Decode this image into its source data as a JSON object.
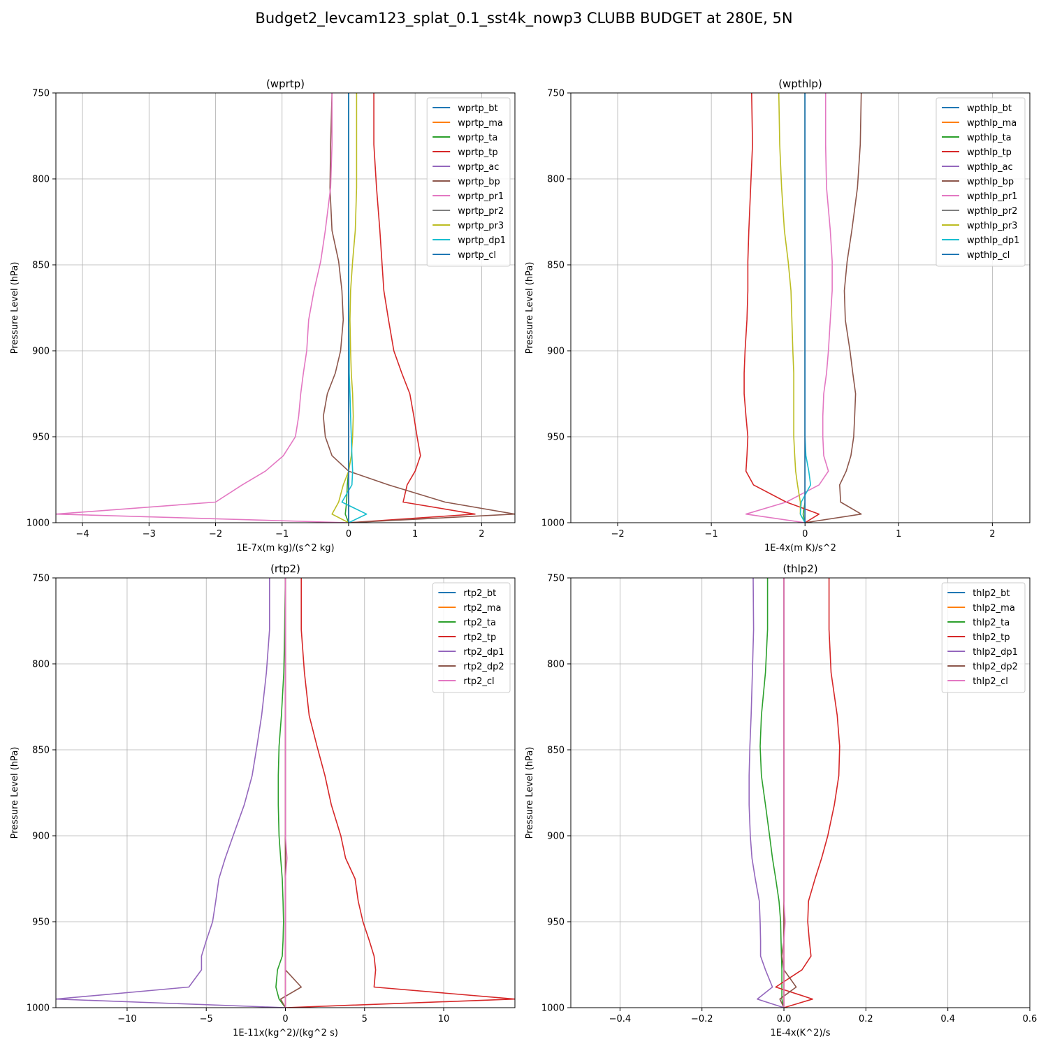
{
  "figure": {
    "title": "Budget2_levcam123_splat_0.1_sst4k_nowp3 CLUBB BUDGET at 280E, 5N"
  },
  "chart_data": [
    {
      "type": "line",
      "title": "(wprtp)",
      "xlabel": "1E-7x(m kg)/(s^2 kg)",
      "ylabel": "Pressure Level (hPa)",
      "xlim": [
        -4.4,
        2.5
      ],
      "ylim": [
        1000,
        750
      ],
      "y_inverted": true,
      "xticks": [
        -4,
        -3,
        -2,
        -1,
        0,
        1,
        2
      ],
      "xtick_labels": [
        "−4",
        "−3",
        "−2",
        "−1",
        "0",
        "1",
        "2"
      ],
      "yticks": [
        750,
        800,
        850,
        900,
        950,
        1000
      ],
      "grid": true,
      "legend_position": "top-right",
      "levels": [
        750,
        780,
        805,
        830,
        848,
        865,
        882,
        900,
        913,
        925,
        938,
        950,
        961,
        970,
        978,
        988,
        995,
        1000
      ],
      "series": [
        {
          "name": "wprtp_bt",
          "color": "#1f77b4",
          "values": [
            0,
            0,
            0,
            0,
            0,
            0,
            0,
            0,
            0,
            0,
            0,
            0,
            0,
            0,
            0,
            0,
            0,
            0
          ]
        },
        {
          "name": "wprtp_ma",
          "color": "#ff7f0e",
          "values": [
            0,
            0,
            0,
            0,
            0,
            0,
            0,
            0,
            0,
            0,
            0,
            0,
            0,
            0,
            0,
            0,
            0,
            0
          ]
        },
        {
          "name": "wprtp_ta",
          "color": "#2ca02c",
          "values": [
            0,
            0,
            0,
            0,
            0,
            0,
            0,
            0,
            0,
            0,
            0,
            0,
            0,
            0.0,
            -0.02,
            -0.03,
            -0.05,
            0
          ]
        },
        {
          "name": "wprtp_tp",
          "color": "#d62728",
          "values": [
            0.38,
            0.38,
            0.42,
            0.47,
            0.5,
            0.53,
            0.6,
            0.68,
            0.8,
            0.92,
            0.98,
            1.03,
            1.08,
            1.0,
            0.88,
            0.82,
            1.9,
            0
          ]
        },
        {
          "name": "wprtp_ac",
          "color": "#9467bd",
          "values": [
            0,
            0,
            0,
            0,
            0,
            0,
            0,
            0,
            0,
            0,
            0,
            0,
            0,
            0,
            0,
            0,
            0,
            0
          ]
        },
        {
          "name": "wprtp_bp",
          "color": "#8c564b",
          "values": [
            -0.25,
            -0.27,
            -0.28,
            -0.25,
            -0.15,
            -0.1,
            -0.08,
            -0.12,
            -0.2,
            -0.32,
            -0.38,
            -0.35,
            -0.25,
            0.0,
            0.6,
            1.45,
            2.5,
            0
          ]
        },
        {
          "name": "wprtp_pr1",
          "color": "#e377c2",
          "values": [
            -0.25,
            -0.25,
            -0.27,
            -0.35,
            -0.42,
            -0.52,
            -0.6,
            -0.63,
            -0.68,
            -0.72,
            -0.75,
            -0.8,
            -0.98,
            -1.25,
            -1.6,
            -2.0,
            -4.4,
            0
          ]
        },
        {
          "name": "wprtp_pr2",
          "color": "#7f7f7f",
          "values": [
            0,
            0,
            0,
            0,
            0,
            0,
            0,
            0,
            0,
            0,
            0,
            0,
            0,
            0,
            0,
            0,
            0,
            0
          ]
        },
        {
          "name": "wprtp_pr3",
          "color": "#bcbd22",
          "values": [
            0.12,
            0.12,
            0.12,
            0.1,
            0.06,
            0.03,
            0.02,
            0.03,
            0.04,
            0.06,
            0.07,
            0.06,
            0.04,
            0.0,
            -0.08,
            -0.15,
            -0.25,
            0
          ]
        },
        {
          "name": "wprtp_dp1",
          "color": "#17becf",
          "values": [
            0,
            0,
            0,
            0,
            0,
            0,
            0,
            0.01,
            0.01,
            0.02,
            0.03,
            0.04,
            0.05,
            0.06,
            0.05,
            -0.1,
            0.27,
            0
          ]
        },
        {
          "name": "wprtp_cl",
          "color": "#1f77b4",
          "values": [
            0,
            0,
            0,
            0,
            0,
            0,
            0,
            0,
            0,
            0,
            0,
            0,
            0,
            0,
            0,
            0,
            0,
            0
          ]
        }
      ]
    },
    {
      "type": "line",
      "title": "(wpthlp)",
      "xlabel": "1E-4x(m K)/s^2",
      "ylabel": "Pressure Level (hPa)",
      "xlim": [
        -2.5,
        2.4
      ],
      "ylim": [
        1000,
        750
      ],
      "y_inverted": true,
      "xticks": [
        -2,
        -1,
        0,
        1,
        2
      ],
      "xtick_labels": [
        "−2",
        "−1",
        "0",
        "1",
        "2"
      ],
      "yticks": [
        750,
        800,
        850,
        900,
        950,
        1000
      ],
      "grid": true,
      "legend_position": "top-right",
      "levels": [
        750,
        780,
        805,
        830,
        848,
        865,
        882,
        900,
        913,
        925,
        938,
        950,
        961,
        970,
        978,
        988,
        995,
        1000
      ],
      "series": [
        {
          "name": "wpthlp_bt",
          "color": "#1f77b4",
          "values": [
            0,
            0,
            0,
            0,
            0,
            0,
            0,
            0,
            0,
            0,
            0,
            0,
            0,
            0,
            0,
            0,
            0,
            0
          ]
        },
        {
          "name": "wpthlp_ma",
          "color": "#ff7f0e",
          "values": [
            0,
            0,
            0,
            0,
            0,
            0,
            0,
            0,
            0,
            0,
            0,
            0,
            0,
            0,
            0,
            0,
            0,
            0
          ]
        },
        {
          "name": "wpthlp_ta",
          "color": "#2ca02c",
          "values": [
            0,
            0,
            0,
            0,
            0,
            0,
            0,
            0,
            0,
            0,
            0,
            0,
            0,
            0,
            0,
            0,
            -0.02,
            0
          ]
        },
        {
          "name": "wpthlp_tp",
          "color": "#d62728",
          "values": [
            -0.57,
            -0.56,
            -0.58,
            -0.6,
            -0.61,
            -0.61,
            -0.62,
            -0.64,
            -0.65,
            -0.65,
            -0.63,
            -0.61,
            -0.62,
            -0.63,
            -0.55,
            -0.2,
            0.15,
            0
          ]
        },
        {
          "name": "wpthlp_ac",
          "color": "#9467bd",
          "values": [
            0,
            0,
            0,
            0,
            0,
            0,
            0,
            0,
            0,
            0,
            0,
            0,
            0,
            0,
            0,
            0,
            0,
            0
          ]
        },
        {
          "name": "wpthlp_bp",
          "color": "#8c564b",
          "values": [
            0.6,
            0.59,
            0.56,
            0.5,
            0.45,
            0.42,
            0.43,
            0.48,
            0.51,
            0.54,
            0.53,
            0.52,
            0.49,
            0.44,
            0.37,
            0.38,
            0.6,
            0
          ]
        },
        {
          "name": "wpthlp_pr1",
          "color": "#e377c2",
          "values": [
            0.22,
            0.22,
            0.23,
            0.27,
            0.29,
            0.29,
            0.27,
            0.25,
            0.23,
            0.2,
            0.19,
            0.19,
            0.2,
            0.25,
            0.15,
            -0.2,
            -0.63,
            0
          ]
        },
        {
          "name": "wpthlp_pr2",
          "color": "#7f7f7f",
          "values": [
            0,
            0,
            0,
            0,
            0,
            0,
            0,
            0,
            0,
            0,
            0,
            0,
            0,
            0,
            0,
            0,
            0,
            0
          ]
        },
        {
          "name": "wpthlp_pr3",
          "color": "#bcbd22",
          "values": [
            -0.28,
            -0.27,
            -0.25,
            -0.22,
            -0.18,
            -0.15,
            -0.14,
            -0.13,
            -0.12,
            -0.12,
            -0.12,
            -0.12,
            -0.11,
            -0.1,
            -0.08,
            -0.05,
            -0.05,
            0
          ]
        },
        {
          "name": "wpthlp_dp1",
          "color": "#17becf",
          "values": [
            0,
            0,
            0,
            0,
            0,
            0,
            0,
            0,
            0,
            0,
            0,
            0,
            0.01,
            0.04,
            0.06,
            -0.04,
            -0.05,
            0
          ]
        },
        {
          "name": "wpthlp_cl",
          "color": "#1f77b4",
          "values": [
            0,
            0,
            0,
            0,
            0,
            0,
            0,
            0,
            0,
            0,
            0,
            0,
            0,
            0,
            0,
            0,
            0,
            0
          ]
        }
      ]
    },
    {
      "type": "line",
      "title": "(rtp2)",
      "xlabel": "1E-11x(kg^2)/(kg^2 s)",
      "ylabel": "Pressure Level (hPa)",
      "xlim": [
        -14.5,
        14.5
      ],
      "ylim": [
        1000,
        750
      ],
      "y_inverted": true,
      "xticks": [
        -10,
        -5,
        0,
        5,
        10
      ],
      "xtick_labels": [
        "−10",
        "−5",
        "0",
        "5",
        "10"
      ],
      "yticks": [
        750,
        800,
        850,
        900,
        950,
        1000
      ],
      "grid": true,
      "legend_position": "top-right",
      "levels": [
        750,
        780,
        805,
        830,
        848,
        865,
        882,
        900,
        913,
        925,
        938,
        950,
        961,
        970,
        978,
        988,
        995,
        1000
      ],
      "series": [
        {
          "name": "rtp2_bt",
          "color": "#1f77b4",
          "values": [
            0,
            0,
            0,
            0,
            0,
            0,
            0,
            0,
            0,
            0,
            0,
            0,
            0,
            0,
            0,
            0,
            0,
            0
          ]
        },
        {
          "name": "rtp2_ma",
          "color": "#ff7f0e",
          "values": [
            0,
            0,
            0,
            0,
            0,
            0,
            0,
            0,
            0,
            0,
            0,
            0,
            0,
            0,
            0,
            0,
            0,
            0
          ]
        },
        {
          "name": "rtp2_ta",
          "color": "#2ca02c",
          "values": [
            0,
            -0.05,
            -0.1,
            -0.25,
            -0.4,
            -0.45,
            -0.45,
            -0.4,
            -0.3,
            -0.2,
            -0.15,
            -0.12,
            -0.15,
            -0.2,
            -0.5,
            -0.6,
            -0.4,
            0
          ]
        },
        {
          "name": "rtp2_tp",
          "color": "#d62728",
          "values": [
            1.0,
            1.0,
            1.2,
            1.5,
            2.0,
            2.5,
            2.9,
            3.5,
            3.8,
            4.4,
            4.6,
            4.9,
            5.3,
            5.6,
            5.7,
            5.6,
            14.5,
            0
          ]
        },
        {
          "name": "rtp2_dp1",
          "color": "#9467bd",
          "values": [
            -1.0,
            -1.0,
            -1.2,
            -1.5,
            -1.8,
            -2.1,
            -2.6,
            -3.3,
            -3.8,
            -4.2,
            -4.4,
            -4.6,
            -5.0,
            -5.3,
            -5.3,
            -6.1,
            -14.5,
            0
          ]
        },
        {
          "name": "rtp2_dp2",
          "color": "#8c564b",
          "values": [
            0,
            0,
            0,
            0,
            0,
            0,
            0,
            0,
            0,
            0,
            0,
            0,
            0,
            0,
            0,
            1.0,
            -0.3,
            0
          ]
        },
        {
          "name": "rtp2_cl",
          "color": "#e377c2",
          "values": [
            0,
            0,
            0,
            0,
            0,
            0,
            0,
            0,
            0.1,
            0,
            0,
            0,
            0,
            0,
            0,
            0,
            0,
            0
          ]
        }
      ]
    },
    {
      "type": "line",
      "title": "(thlp2)",
      "xlabel": "1E-4x(K^2)/s",
      "ylabel": "Pressure Level (hPa)",
      "xlim": [
        -0.52,
        0.6
      ],
      "ylim": [
        1000,
        750
      ],
      "y_inverted": true,
      "xticks": [
        -0.4,
        -0.2,
        0.0,
        0.2,
        0.4,
        0.6
      ],
      "xtick_labels": [
        "−0.4",
        "−0.2",
        "0.0",
        "0.2",
        "0.4",
        "0.6"
      ],
      "yticks": [
        750,
        800,
        850,
        900,
        950,
        1000
      ],
      "grid": true,
      "legend_position": "top-right",
      "levels": [
        750,
        780,
        805,
        830,
        848,
        865,
        882,
        900,
        913,
        925,
        938,
        950,
        961,
        970,
        978,
        988,
        995,
        1000
      ],
      "series": [
        {
          "name": "thlp2_bt",
          "color": "#1f77b4",
          "values": [
            0,
            0,
            0,
            0,
            0,
            0,
            0,
            0,
            0,
            0,
            0,
            0,
            0,
            0,
            0,
            0,
            0,
            0
          ]
        },
        {
          "name": "thlp2_ma",
          "color": "#ff7f0e",
          "values": [
            0,
            0,
            0,
            0,
            0,
            0,
            0,
            0,
            0,
            0,
            0,
            0,
            0,
            0,
            0,
            0,
            0,
            0
          ]
        },
        {
          "name": "thlp2_ta",
          "color": "#2ca02c",
          "values": [
            -0.04,
            -0.04,
            -0.045,
            -0.055,
            -0.058,
            -0.055,
            -0.045,
            -0.035,
            -0.028,
            -0.02,
            -0.012,
            -0.008,
            -0.007,
            -0.006,
            -0.005,
            -0.005,
            -0.005,
            0
          ]
        },
        {
          "name": "thlp2_tp",
          "color": "#d62728",
          "values": [
            0.11,
            0.11,
            0.115,
            0.13,
            0.136,
            0.134,
            0.123,
            0.107,
            0.092,
            0.076,
            0.06,
            0.058,
            0.062,
            0.066,
            0.044,
            -0.02,
            0.07,
            0
          ]
        },
        {
          "name": "thlp2_dp1",
          "color": "#9467bd",
          "values": [
            -0.075,
            -0.074,
            -0.077,
            -0.08,
            -0.083,
            -0.085,
            -0.085,
            -0.082,
            -0.078,
            -0.07,
            -0.06,
            -0.058,
            -0.057,
            -0.057,
            -0.045,
            -0.028,
            -0.065,
            0
          ]
        },
        {
          "name": "thlp2_dp2",
          "color": "#8c564b",
          "values": [
            0,
            0,
            0,
            0,
            0,
            0,
            0,
            0,
            0,
            0,
            0,
            0,
            0,
            -0.005,
            0,
            0.03,
            -0.01,
            0
          ]
        },
        {
          "name": "thlp2_cl",
          "color": "#e377c2",
          "values": [
            0,
            0,
            0,
            0,
            0,
            0,
            0,
            0,
            0,
            0,
            0,
            0.003,
            0,
            0,
            0,
            0,
            0,
            0
          ]
        }
      ]
    }
  ]
}
